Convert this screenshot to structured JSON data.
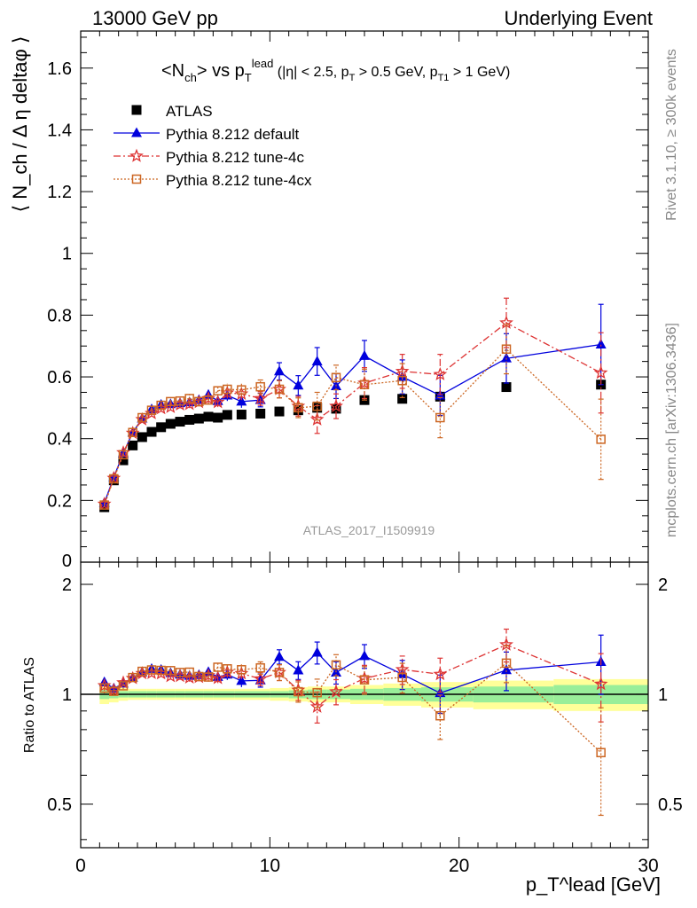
{
  "header": {
    "left": "13000 GeV pp",
    "right": "Underlying Event"
  },
  "side_labels": {
    "rivet": "Rivet 3.1.10, ≥ 300k events",
    "mcplots": "mcplots.cern.ch [arXiv:1306.3436]"
  },
  "watermark": "ATLAS_2017_I1509919",
  "plot_title": {
    "main_prefix": "<N",
    "main_sub": "ch",
    "main_mid": "> vs p",
    "main_sub2": "T",
    "main_sup": "lead",
    "cuts": "(|η| < 2.5, p",
    "cuts_sub1": "T",
    "cuts_mid": " > 0.5 GeV, p",
    "cuts_sub2": "T1",
    "cuts_end": " > 1 GeV)"
  },
  "y_label_main": "⟨ N_ch / Δ η deltaφ ⟩",
  "y_label_ratio": "Ratio to ATLAS",
  "x_label": "p_T^lead [GeV]",
  "legend": [
    {
      "name": "ATLAS",
      "color": "#000000",
      "marker": "square"
    },
    {
      "name": "Pythia 8.212 default",
      "color": "#0000dd",
      "marker": "triangle"
    },
    {
      "name": "Pythia 8.212 tune-4c",
      "color": "#dd3333",
      "marker": "star"
    },
    {
      "name": "Pythia 8.212 tune-4cx",
      "color": "#cc6622",
      "marker": "open-square"
    }
  ],
  "chart_data": {
    "type": "scatter",
    "title": "<N_ch> vs p_T^lead (|η| < 2.5, p_T > 0.5 GeV, p_T1 > 1 GeV)",
    "xlabel": "p_T^lead [GeV]",
    "ylabel": "⟨ N_ch / Δ η deltaφ ⟩",
    "xlim": [
      0,
      30
    ],
    "ylim": [
      0,
      1.72
    ],
    "ratio_ylim": [
      0.38,
      2.3
    ],
    "x_ticks": [
      "0",
      "10",
      "20",
      "30"
    ],
    "y_ticks": [
      "0",
      "0.2",
      "0.4",
      "0.6",
      "0.8",
      "1",
      "1.2",
      "1.4",
      "1.6"
    ],
    "ratio_y_ticks": [
      "0.5",
      "1",
      "2"
    ],
    "x": [
      1.25,
      1.75,
      2.25,
      2.75,
      3.25,
      3.75,
      4.25,
      4.75,
      5.25,
      5.75,
      6.25,
      6.75,
      7.25,
      7.75,
      8.5,
      9.5,
      10.5,
      11.5,
      12.5,
      13.5,
      15.0,
      17.0,
      19.0,
      22.5,
      27.5
    ],
    "series": [
      {
        "name": "ATLAS",
        "values": [
          0.178,
          0.265,
          0.33,
          0.378,
          0.405,
          0.422,
          0.437,
          0.448,
          0.455,
          0.461,
          0.465,
          0.471,
          0.468,
          0.477,
          0.478,
          0.481,
          0.488,
          0.492,
          0.5,
          0.497,
          0.525,
          0.529,
          0.536,
          0.567,
          0.575
        ],
        "errors": [
          0,
          0,
          0,
          0,
          0,
          0,
          0,
          0,
          0,
          0,
          0,
          0,
          0,
          0,
          0,
          0,
          0,
          0,
          0,
          0,
          0,
          0,
          0,
          0,
          0
        ],
        "ratio_band_stat": [
          0.03,
          0.025,
          0.02,
          0.02,
          0.02,
          0.02,
          0.02,
          0.02,
          0.02,
          0.02,
          0.02,
          0.02,
          0.02,
          0.02,
          0.02,
          0.02,
          0.02,
          0.025,
          0.03,
          0.03,
          0.035,
          0.04,
          0.045,
          0.05,
          0.06
        ],
        "ratio_band_total": [
          0.06,
          0.05,
          0.04,
          0.035,
          0.035,
          0.035,
          0.035,
          0.035,
          0.035,
          0.035,
          0.035,
          0.035,
          0.035,
          0.035,
          0.035,
          0.035,
          0.04,
          0.045,
          0.05,
          0.05,
          0.06,
          0.07,
          0.08,
          0.09,
          0.1
        ]
      },
      {
        "name": "Pythia 8.212 default",
        "values": [
          0.192,
          0.275,
          0.353,
          0.42,
          0.465,
          0.495,
          0.51,
          0.512,
          0.515,
          0.518,
          0.525,
          0.542,
          0.522,
          0.54,
          0.52,
          0.525,
          0.618,
          0.572,
          0.65,
          0.57,
          0.668,
          0.6,
          0.54,
          0.66,
          0.705
        ],
        "errors": [
          0.006,
          0.006,
          0.007,
          0.008,
          0.009,
          0.01,
          0.01,
          0.011,
          0.012,
          0.013,
          0.014,
          0.015,
          0.016,
          0.018,
          0.02,
          0.022,
          0.028,
          0.032,
          0.045,
          0.04,
          0.05,
          0.055,
          0.065,
          0.08,
          0.13
        ]
      },
      {
        "name": "Pythia 8.212 tune-4c",
        "values": [
          0.188,
          0.272,
          0.355,
          0.418,
          0.462,
          0.482,
          0.498,
          0.502,
          0.51,
          0.512,
          0.518,
          0.53,
          0.518,
          0.548,
          0.545,
          0.53,
          0.56,
          0.505,
          0.462,
          0.505,
          0.58,
          0.618,
          0.608,
          0.775,
          0.613
        ]
      },
      {
        "name": "Pythia 8.212 tune-4cx",
        "values": [
          0.185,
          0.27,
          0.348,
          0.42,
          0.468,
          0.492,
          0.508,
          0.52,
          0.522,
          0.53,
          0.52,
          0.525,
          0.555,
          0.56,
          0.558,
          0.568,
          0.56,
          0.5,
          0.505,
          0.598,
          0.575,
          0.588,
          0.468,
          0.69,
          0.398
        ]
      }
    ]
  }
}
